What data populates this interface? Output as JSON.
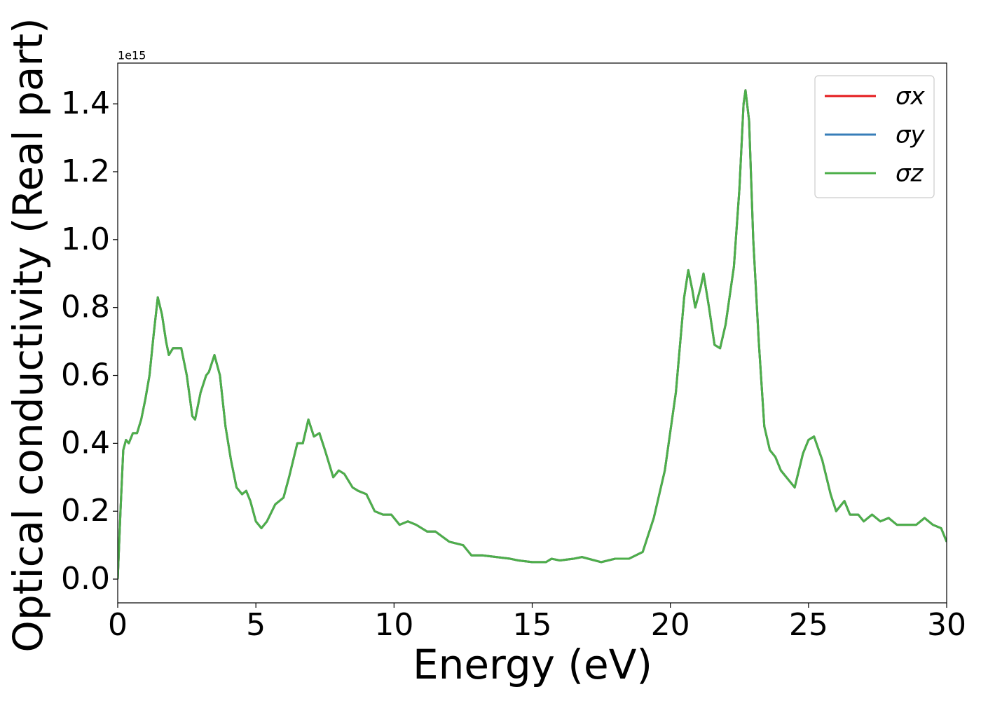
{
  "chart_data": {
    "type": "line",
    "xlabel": "Energy (eV)",
    "ylabel": "Optical conductivity (Real part)",
    "y_offset_label": "1e15",
    "xlim": [
      0,
      30
    ],
    "ylim": [
      -0.07,
      1.52
    ],
    "xticks": [
      0,
      5,
      10,
      15,
      20,
      25,
      30
    ],
    "yticks": [
      {
        "value": 0,
        "label": "0.0"
      },
      0.2,
      0.4,
      0.6,
      0.8,
      {
        "value": 1,
        "label": "1.0"
      },
      1.2,
      1.4
    ],
    "grid": false,
    "legend": "upper right",
    "x": [
      0,
      0.1,
      0.2,
      0.3,
      0.4,
      0.55,
      0.7,
      0.85,
      1.0,
      1.15,
      1.3,
      1.45,
      1.6,
      1.75,
      1.85,
      2.0,
      2.3,
      2.5,
      2.7,
      2.8,
      3.0,
      3.2,
      3.3,
      3.5,
      3.7,
      3.9,
      4.1,
      4.3,
      4.5,
      4.65,
      4.8,
      5.0,
      5.2,
      5.4,
      5.7,
      6.0,
      6.2,
      6.5,
      6.7,
      6.9,
      7.1,
      7.3,
      7.5,
      7.8,
      8.0,
      8.2,
      8.5,
      8.7,
      9.0,
      9.3,
      9.6,
      9.9,
      10.2,
      10.5,
      10.8,
      11.2,
      11.5,
      12.0,
      12.5,
      12.8,
      13.2,
      13.7,
      14.2,
      14.5,
      15.0,
      15.5,
      15.7,
      16.0,
      16.5,
      16.8,
      17.5,
      18.0,
      18.5,
      19.0,
      19.4,
      19.8,
      20.2,
      20.5,
      20.65,
      20.8,
      20.9,
      21.1,
      21.2,
      21.4,
      21.6,
      21.8,
      22.0,
      22.3,
      22.5,
      22.65,
      22.72,
      22.85,
      23.0,
      23.2,
      23.4,
      23.6,
      23.8,
      24.0,
      24.3,
      24.5,
      24.8,
      25.0,
      25.2,
      25.5,
      25.8,
      26.0,
      26.3,
      26.5,
      26.8,
      27.0,
      27.3,
      27.6,
      27.9,
      28.2,
      28.6,
      28.9,
      29.2,
      29.5,
      29.8,
      30.0
    ],
    "series": [
      {
        "name": "σx",
        "color": "#e41a1c",
        "values": [
          0,
          0.2,
          0.38,
          0.41,
          0.4,
          0.43,
          0.43,
          0.47,
          0.53,
          0.6,
          0.72,
          0.83,
          0.78,
          0.7,
          0.66,
          0.68,
          0.68,
          0.6,
          0.48,
          0.47,
          0.55,
          0.6,
          0.61,
          0.66,
          0.6,
          0.45,
          0.35,
          0.27,
          0.25,
          0.26,
          0.23,
          0.17,
          0.15,
          0.17,
          0.22,
          0.24,
          0.3,
          0.4,
          0.4,
          0.47,
          0.42,
          0.43,
          0.38,
          0.3,
          0.32,
          0.31,
          0.27,
          0.26,
          0.25,
          0.2,
          0.19,
          0.19,
          0.16,
          0.17,
          0.16,
          0.14,
          0.14,
          0.11,
          0.1,
          0.07,
          0.07,
          0.065,
          0.06,
          0.055,
          0.05,
          0.05,
          0.06,
          0.055,
          0.06,
          0.065,
          0.05,
          0.06,
          0.06,
          0.08,
          0.18,
          0.32,
          0.55,
          0.83,
          0.91,
          0.85,
          0.8,
          0.86,
          0.9,
          0.8,
          0.69,
          0.68,
          0.75,
          0.92,
          1.15,
          1.4,
          1.44,
          1.35,
          1.0,
          0.7,
          0.45,
          0.38,
          0.36,
          0.32,
          0.29,
          0.27,
          0.37,
          0.41,
          0.42,
          0.35,
          0.25,
          0.2,
          0.23,
          0.19,
          0.19,
          0.17,
          0.19,
          0.17,
          0.18,
          0.16,
          0.16,
          0.16,
          0.18,
          0.16,
          0.15,
          0.11
        ]
      },
      {
        "name": "σy",
        "color": "#377eb8",
        "values": [
          0,
          0.2,
          0.38,
          0.41,
          0.4,
          0.43,
          0.43,
          0.47,
          0.53,
          0.6,
          0.72,
          0.83,
          0.78,
          0.7,
          0.66,
          0.68,
          0.68,
          0.6,
          0.48,
          0.47,
          0.55,
          0.6,
          0.61,
          0.66,
          0.6,
          0.45,
          0.35,
          0.27,
          0.25,
          0.26,
          0.23,
          0.17,
          0.15,
          0.17,
          0.22,
          0.24,
          0.3,
          0.4,
          0.4,
          0.47,
          0.42,
          0.43,
          0.38,
          0.3,
          0.32,
          0.31,
          0.27,
          0.26,
          0.25,
          0.2,
          0.19,
          0.19,
          0.16,
          0.17,
          0.16,
          0.14,
          0.14,
          0.11,
          0.1,
          0.07,
          0.07,
          0.065,
          0.06,
          0.055,
          0.05,
          0.05,
          0.06,
          0.055,
          0.06,
          0.065,
          0.05,
          0.06,
          0.06,
          0.08,
          0.18,
          0.32,
          0.55,
          0.83,
          0.91,
          0.85,
          0.8,
          0.86,
          0.9,
          0.8,
          0.69,
          0.68,
          0.75,
          0.92,
          1.15,
          1.4,
          1.44,
          1.35,
          1.0,
          0.7,
          0.45,
          0.38,
          0.36,
          0.32,
          0.29,
          0.27,
          0.37,
          0.41,
          0.42,
          0.35,
          0.25,
          0.2,
          0.23,
          0.19,
          0.19,
          0.17,
          0.19,
          0.17,
          0.18,
          0.16,
          0.16,
          0.16,
          0.18,
          0.16,
          0.15,
          0.11
        ]
      },
      {
        "name": "σz",
        "color": "#4daf4a",
        "values": [
          0,
          0.2,
          0.38,
          0.41,
          0.4,
          0.43,
          0.43,
          0.47,
          0.53,
          0.6,
          0.72,
          0.83,
          0.78,
          0.7,
          0.66,
          0.68,
          0.68,
          0.6,
          0.48,
          0.47,
          0.55,
          0.6,
          0.61,
          0.66,
          0.6,
          0.45,
          0.35,
          0.27,
          0.25,
          0.26,
          0.23,
          0.17,
          0.15,
          0.17,
          0.22,
          0.24,
          0.3,
          0.4,
          0.4,
          0.47,
          0.42,
          0.43,
          0.38,
          0.3,
          0.32,
          0.31,
          0.27,
          0.26,
          0.25,
          0.2,
          0.19,
          0.19,
          0.16,
          0.17,
          0.16,
          0.14,
          0.14,
          0.11,
          0.1,
          0.07,
          0.07,
          0.065,
          0.06,
          0.055,
          0.05,
          0.05,
          0.06,
          0.055,
          0.06,
          0.065,
          0.05,
          0.06,
          0.06,
          0.08,
          0.18,
          0.32,
          0.55,
          0.83,
          0.91,
          0.85,
          0.8,
          0.86,
          0.9,
          0.8,
          0.69,
          0.68,
          0.75,
          0.92,
          1.15,
          1.4,
          1.44,
          1.35,
          1.0,
          0.7,
          0.45,
          0.38,
          0.36,
          0.32,
          0.29,
          0.27,
          0.37,
          0.41,
          0.42,
          0.35,
          0.25,
          0.2,
          0.23,
          0.19,
          0.19,
          0.17,
          0.19,
          0.17,
          0.18,
          0.16,
          0.16,
          0.16,
          0.18,
          0.16,
          0.15,
          0.11
        ]
      }
    ]
  }
}
